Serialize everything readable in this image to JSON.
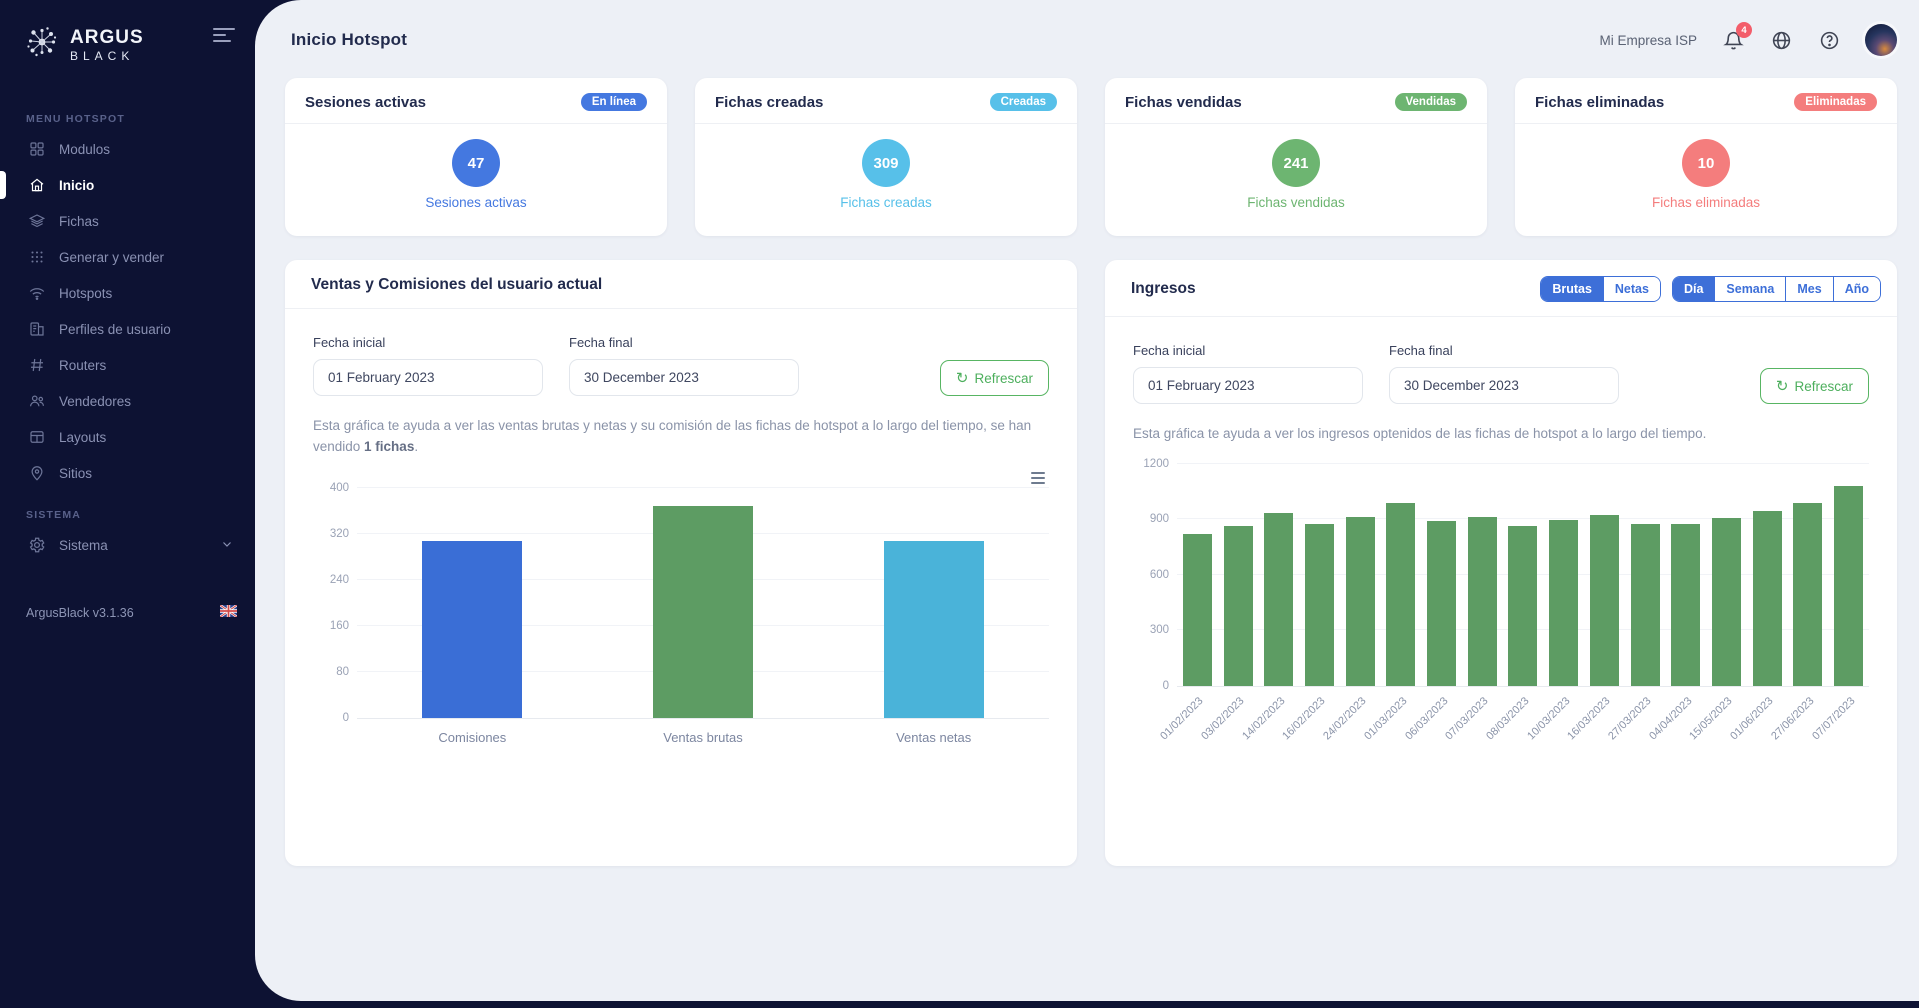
{
  "sidebar": {
    "logo_title": "ARGUS",
    "logo_subtitle": "BLACK",
    "logo_icon": "network-burst-icon",
    "collapse_icon": "sidebar-toggle-icon",
    "menu_section": "MENU HOTSPOT",
    "items": [
      {
        "label": "Modulos",
        "icon": "modules",
        "active": false
      },
      {
        "label": "Inicio",
        "icon": "home",
        "active": true
      },
      {
        "label": "Fichas",
        "icon": "layers",
        "active": false
      },
      {
        "label": "Generar y vender",
        "icon": "grid-dots",
        "active": false
      },
      {
        "label": "Hotspots",
        "icon": "wifi",
        "active": false
      },
      {
        "label": "Perfiles de usuario",
        "icon": "profile",
        "active": false
      },
      {
        "label": "Routers",
        "icon": "hash",
        "active": false
      },
      {
        "label": "Vendedores",
        "icon": "users",
        "active": false
      },
      {
        "label": "Layouts",
        "icon": "layout",
        "active": false
      },
      {
        "label": "Sitios",
        "icon": "map-pin",
        "active": false
      }
    ],
    "system_section": "SISTEMA",
    "system_item": {
      "label": "Sistema",
      "icon": "gear",
      "chevron": "chevron-down-icon"
    },
    "version": "ArgusBlack v3.1.36",
    "flag_icon": "uk-flag-icon"
  },
  "header": {
    "title": "Inicio Hotspot",
    "company": "Mi Empresa ISP",
    "notifications_count": "4",
    "notification_badge_color": "#f35d6a",
    "icons": [
      "bell-icon",
      "globe-icon",
      "help-icon",
      "avatar"
    ]
  },
  "stat_cards": [
    {
      "title": "Sesiones activas",
      "badge": "En línea",
      "value": "47",
      "label": "Sesiones activas",
      "color": "#4478e0"
    },
    {
      "title": "Fichas creadas",
      "badge": "Creadas",
      "value": "309",
      "label": "Fichas creadas",
      "color": "#57c0e9"
    },
    {
      "title": "Fichas vendidas",
      "badge": "Vendidas",
      "value": "241",
      "label": "Fichas vendidas",
      "color": "#6db571"
    },
    {
      "title": "Fichas eliminadas",
      "badge": "Eliminadas",
      "value": "10",
      "label": "Fichas eliminadas",
      "color": "#f47d7d"
    }
  ],
  "sales_panel": {
    "title": "Ventas y Comisiones del usuario actual",
    "fecha_inicial_label": "Fecha inicial",
    "fecha_inicial_value": "01 February 2023",
    "fecha_final_label": "Fecha final",
    "fecha_final_value": "30 December 2023",
    "refresh_label": "Refrescar",
    "refresh_color": "#55b35f",
    "description_prefix": "Esta gráfica te ayuda a ver las ventas brutas y netas y su comisión de las fichas de hotspot a lo largo del tiempo, se han vendido ",
    "description_bold": "1 fichas",
    "description_suffix": "."
  },
  "ingresos_panel": {
    "title": "Ingresos",
    "type_toggle": {
      "options": [
        "Brutas",
        "Netas"
      ],
      "active": "Brutas"
    },
    "period_toggle": {
      "options": [
        "Día",
        "Semana",
        "Mes",
        "Año"
      ],
      "active": "Día"
    },
    "fecha_inicial_label": "Fecha inicial",
    "fecha_inicial_value": "01 February 2023",
    "fecha_final_label": "Fecha final",
    "fecha_final_value": "30 December 2023",
    "refresh_label": "Refrescar",
    "description": "Esta gráfica te ayuda a ver los ingresos optenidos de las fichas de hotspot a lo largo del tiempo."
  },
  "chart_data": [
    {
      "type": "bar",
      "title": "Ventas y Comisiones del usuario actual",
      "categories": [
        "Comisiones",
        "Ventas brutas",
        "Ventas netas"
      ],
      "values": [
        308,
        368,
        308
      ],
      "bar_colors": [
        "#3a6ed6",
        "#5d9c63",
        "#4ab3d9"
      ],
      "yticks": [
        0,
        80,
        160,
        240,
        320,
        400
      ],
      "ylim": [
        0,
        400
      ],
      "grid": true,
      "xlabel": "",
      "ylabel": "",
      "legend": "none"
    },
    {
      "type": "bar",
      "title": "Ingresos",
      "categories": [
        "01/02/2023",
        "03/02/2023",
        "14/02/2023",
        "16/02/2023",
        "24/02/2023",
        "01/03/2023",
        "06/03/2023",
        "07/03/2023",
        "08/03/2023",
        "10/03/2023",
        "16/03/2023",
        "27/03/2023",
        "04/04/2023",
        "15/05/2023",
        "01/06/2023",
        "27/06/2023",
        "07/07/2023"
      ],
      "values": [
        820,
        865,
        935,
        875,
        915,
        990,
        890,
        915,
        865,
        895,
        925,
        875,
        875,
        910,
        945,
        990,
        1080
      ],
      "bar_colors": [
        "#5d9c63"
      ],
      "yticks": [
        0,
        300,
        600,
        900,
        1200
      ],
      "ylim": [
        0,
        1200
      ],
      "grid": true,
      "xlabel": "",
      "ylabel": "",
      "legend": "none",
      "label_rotation": -45
    }
  ]
}
